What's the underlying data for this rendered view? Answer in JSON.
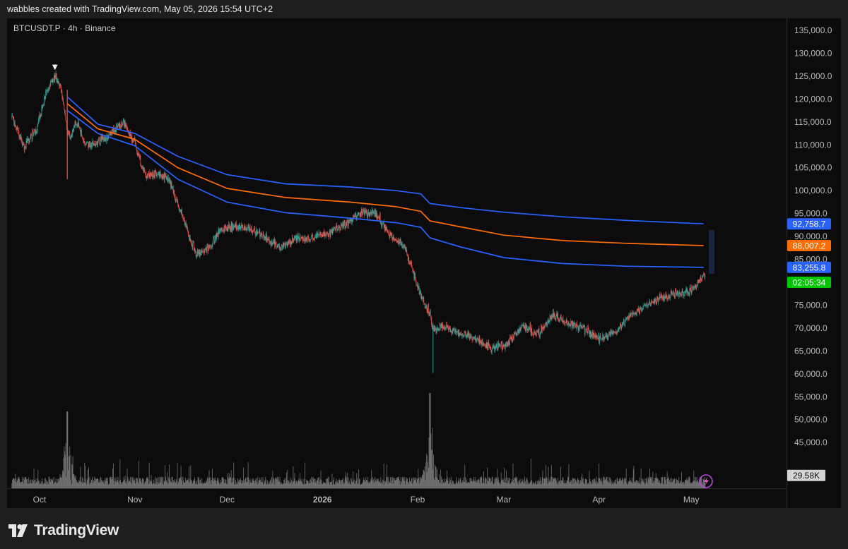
{
  "header": {
    "credit": "wabbles created with TradingView.com, May 05, 2026 15:54 UTC+2"
  },
  "footer": {
    "brand": "TradingView"
  },
  "colors": {
    "up": "#26a69a",
    "down": "#ef5350",
    "band": "#2962ff",
    "mid": "#ff6d00",
    "volume": "#8a8a8a",
    "countdown": "#00c800"
  },
  "chart_data": {
    "type": "candlestick",
    "title": "BTCUSDT.P · 4h · Binance",
    "symbol": "BTCUSDT.P",
    "interval": "4h",
    "exchange": "Binance",
    "ylim": [
      35000,
      137500
    ],
    "y_ticks": [
      "135,000.0",
      "130,000.0",
      "125,000.0",
      "120,000.0",
      "115,000.0",
      "110,000.0",
      "105,000.0",
      "100,000.0",
      "95,000.0",
      "90,000.0",
      "85,000.0",
      "80,000.0",
      "75,000.0",
      "70,000.0",
      "65,000.0",
      "60,000.0",
      "55,000.0",
      "50,000.0",
      "45,000.0"
    ],
    "x_ticks": [
      "Oct",
      "Nov",
      "Dec",
      "2026",
      "Feb",
      "Mar",
      "Apr",
      "May"
    ],
    "price_path": {
      "dates": [
        "2025-09-22",
        "2025-09-26",
        "2025-09-30",
        "2025-10-03",
        "2025-10-06",
        "2025-10-08",
        "2025-10-10",
        "2025-10-11",
        "2025-10-13",
        "2025-10-16",
        "2025-10-20",
        "2025-10-24",
        "2025-10-28",
        "2025-11-01",
        "2025-11-04",
        "2025-11-08",
        "2025-11-12",
        "2025-11-16",
        "2025-11-21",
        "2025-11-25",
        "2025-11-29",
        "2025-12-03",
        "2025-12-08",
        "2025-12-13",
        "2025-12-18",
        "2025-12-23",
        "2025-12-28",
        "2026-01-02",
        "2026-01-08",
        "2026-01-14",
        "2026-01-18",
        "2026-01-23",
        "2026-01-28",
        "2026-02-01",
        "2026-02-03",
        "2026-02-05",
        "2026-02-06",
        "2026-02-09",
        "2026-02-14",
        "2026-02-20",
        "2026-02-25",
        "2026-03-02",
        "2026-03-07",
        "2026-03-12",
        "2026-03-17",
        "2026-03-22",
        "2026-03-27",
        "2026-04-01",
        "2026-04-06",
        "2026-04-11",
        "2026-04-16",
        "2026-04-21",
        "2026-04-26",
        "2026-05-01",
        "2026-05-05"
      ],
      "close": [
        116000,
        109500,
        113500,
        121000,
        125300,
        122500,
        113000,
        111500,
        115000,
        110000,
        110500,
        112500,
        115000,
        110500,
        103500,
        103500,
        102500,
        95000,
        86000,
        87500,
        91500,
        92000,
        92000,
        90000,
        87500,
        89500,
        89500,
        90500,
        92500,
        95500,
        95000,
        90500,
        87500,
        79000,
        76000,
        73000,
        69500,
        70500,
        69000,
        67500,
        65500,
        66500,
        70500,
        68500,
        73000,
        71000,
        70000,
        67500,
        69000,
        72500,
        75000,
        76500,
        77500,
        78000,
        81500
      ]
    },
    "volume_lim": [
      0,
      165000
    ],
    "volume": {
      "last": "29.58K",
      "peak": 155000,
      "spike_dates": [
        "2025-10-10",
        "2026-02-05"
      ]
    },
    "series": [
      {
        "name": "upper band",
        "value_label": "92,758.7",
        "dates": [
          "2025-10-10",
          "2025-10-20",
          "2025-11-01",
          "2025-11-15",
          "2025-12-01",
          "2025-12-20",
          "2026-01-10",
          "2026-01-25",
          "2026-02-02",
          "2026-02-05",
          "2026-02-15",
          "2026-03-01",
          "2026-03-20",
          "2026-04-10",
          "2026-05-05"
        ],
        "values": [
          120500,
          114500,
          112500,
          107500,
          103500,
          101500,
          100800,
          100000,
          99300,
          97200,
          96300,
          95300,
          94300,
          93500,
          92758.7
        ]
      },
      {
        "name": "middle line",
        "value_label": "88,007.2",
        "dates": [
          "2025-10-10",
          "2025-10-20",
          "2025-11-01",
          "2025-11-15",
          "2025-12-01",
          "2025-12-20",
          "2026-01-10",
          "2026-01-25",
          "2026-02-02",
          "2026-02-05",
          "2026-02-15",
          "2026-03-01",
          "2026-03-20",
          "2026-04-10",
          "2026-05-05"
        ],
        "values": [
          119000,
          113500,
          111200,
          105000,
          100500,
          98500,
          97500,
          96500,
          95500,
          93400,
          92100,
          90300,
          89100,
          88500,
          88007.2
        ]
      },
      {
        "name": "lower band",
        "value_label": "83,255.8",
        "dates": [
          "2025-10-10",
          "2025-10-20",
          "2025-11-01",
          "2025-11-15",
          "2025-12-01",
          "2025-12-20",
          "2026-01-10",
          "2026-01-25",
          "2026-02-02",
          "2026-02-05",
          "2026-02-15",
          "2026-03-01",
          "2026-03-20",
          "2026-04-10",
          "2026-05-05"
        ],
        "values": [
          117500,
          112500,
          109800,
          102500,
          97500,
          95200,
          94000,
          93000,
          92000,
          89700,
          87700,
          85400,
          84100,
          83500,
          83255.8
        ]
      }
    ],
    "countdown_label": "02:05:34",
    "marker": {
      "date": "2025-10-06",
      "symbol": "▼"
    }
  }
}
